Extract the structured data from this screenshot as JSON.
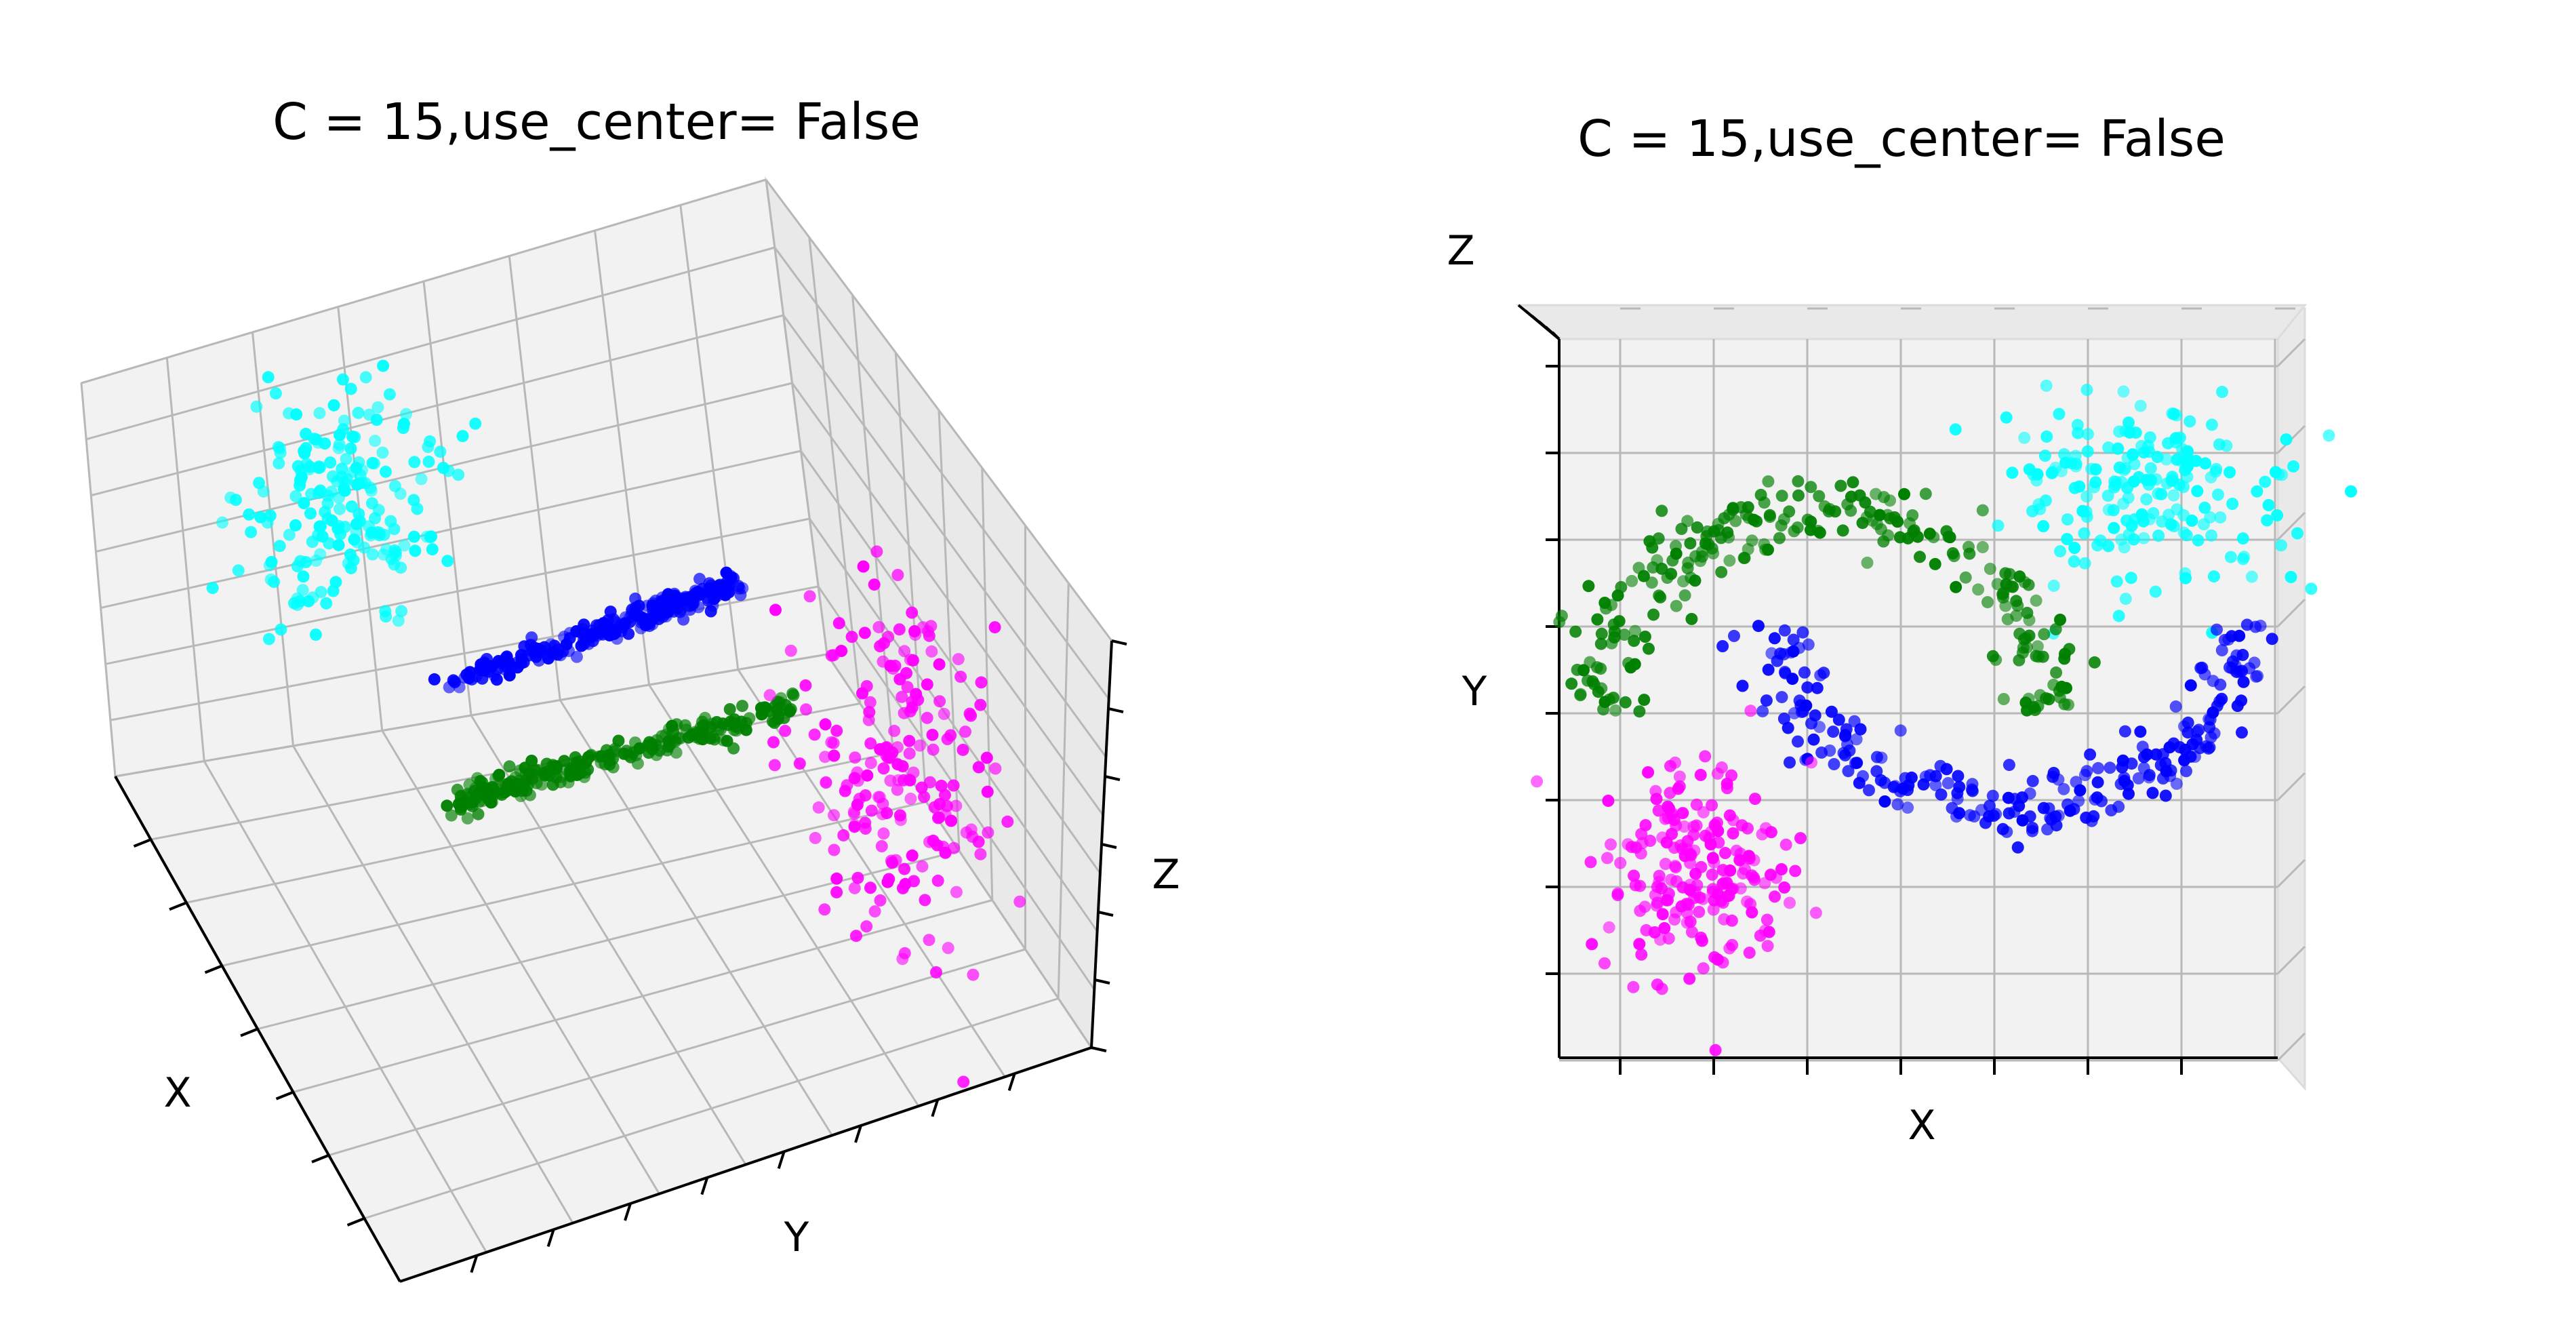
{
  "chart_data": [
    {
      "type": "scatter",
      "projection": "3d",
      "title": "C = 15,use_center= False",
      "xlabel": "X",
      "ylabel": "Y",
      "zlabel": "Z",
      "view": "oblique from above",
      "grid": true,
      "tick_labels": false,
      "series": [
        {
          "color": "#00ffff",
          "points": 200
        },
        {
          "color": "#0000ff",
          "points": 250
        },
        {
          "color": "#008000",
          "points": 250
        },
        {
          "color": "#ff00ff",
          "points": 200
        }
      ]
    },
    {
      "type": "scatter",
      "projection": "3d",
      "title": "C = 15,use_center= False",
      "xlabel": "X",
      "ylabel": "Y",
      "zlabel": "Z",
      "view": "top-down",
      "grid": true,
      "tick_labels": false,
      "series": [
        {
          "color": "#00ffff",
          "points": 200
        },
        {
          "color": "#0000ff",
          "points": 250
        },
        {
          "color": "#008000",
          "points": 250
        },
        {
          "color": "#ff00ff",
          "points": 200
        }
      ]
    }
  ]
}
